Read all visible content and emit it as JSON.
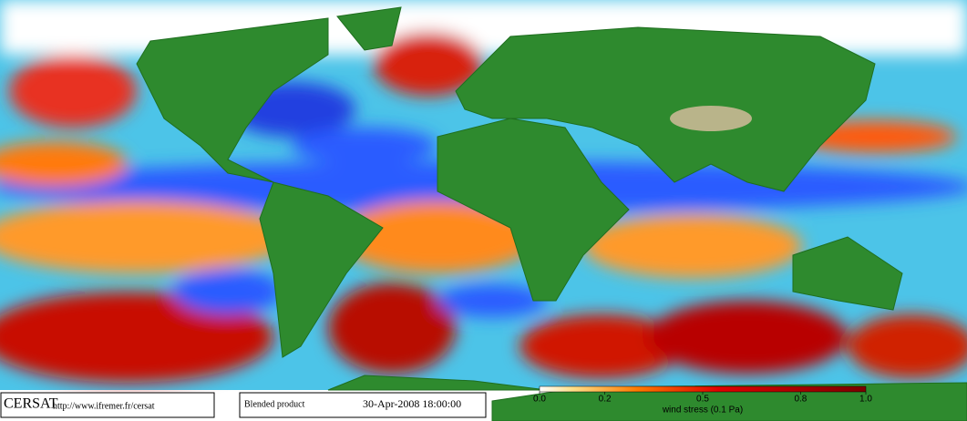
{
  "footer": {
    "logo": "CERSAT",
    "url": "http://www.ifremer.fr/cersat",
    "product": "Blended product",
    "date": "30-Apr-2008 18:00:00"
  },
  "colorbar": {
    "label": "wind stress (0.1 Pa)",
    "range": [
      0,
      1
    ],
    "ticks": [
      {
        "value": 0,
        "label": "0.0"
      },
      0.2,
      0.5,
      0.8,
      {
        "value": 1,
        "label": "1.0"
      }
    ]
  }
}
